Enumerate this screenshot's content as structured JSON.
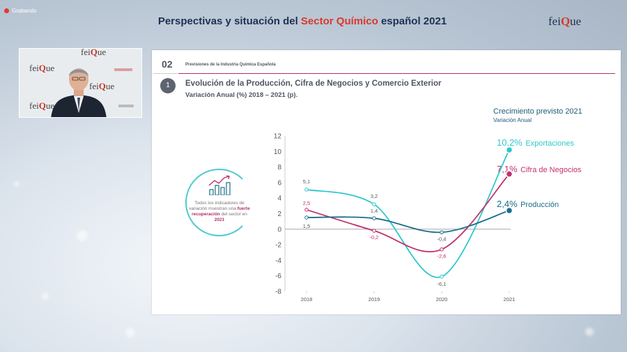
{
  "recording": {
    "label": "Grabando"
  },
  "header": {
    "title_pre": "Perspectivas y situación del ",
    "title_highlight": "Sector Químico",
    "title_post": " español 2021",
    "logo_a": "fei",
    "logo_b": "Q",
    "logo_c": "ue"
  },
  "slide": {
    "section_number": "02",
    "section_title": "Previsiones de la Industria Química Española",
    "step_number": "1",
    "title": "Evolución de la Producción, Cifra de Negocios y Comercio Exterior",
    "subtitle": "Variación Anual (%) 2018 – 2021 (p).",
    "growth_title": "Crecimiento previsto 2021",
    "growth_subtitle": "Variación Anual",
    "info_text_pre": "Todos los indicadores de variación muestran una ",
    "info_text_strong": "fuerte recuperación",
    "info_text_mid": " del sector en ",
    "info_text_year": "2021"
  },
  "colors": {
    "exportaciones": "#2fc7cc",
    "cifra": "#c2306f",
    "produccion": "#1b6e8a"
  },
  "chart_data": {
    "type": "line",
    "categories": [
      "2018",
      "2019",
      "2020",
      "2021"
    ],
    "ylim": [
      -8,
      12
    ],
    "yticks": [
      12,
      10,
      8,
      6,
      4,
      2,
      0,
      -2,
      -4,
      -6,
      -8
    ],
    "series": [
      {
        "name": "Exportaciones",
        "key": "exportaciones",
        "values": [
          5.1,
          3.2,
          -6.1,
          10.2
        ],
        "labels": [
          "5,1",
          "3,2",
          "-6,1",
          "10,2%"
        ]
      },
      {
        "name": "Cifra de Negocios",
        "key": "cifra",
        "values": [
          2.5,
          -0.2,
          -2.6,
          7.1
        ],
        "labels": [
          "2,5",
          "-0,2",
          "-2,6",
          "7,1%"
        ]
      },
      {
        "name": "Producción",
        "key": "produccion",
        "values": [
          1.5,
          1.4,
          -0.4,
          2.4
        ],
        "labels": [
          "1,5",
          "1,4",
          "-0,4",
          "2,4%"
        ]
      }
    ]
  }
}
